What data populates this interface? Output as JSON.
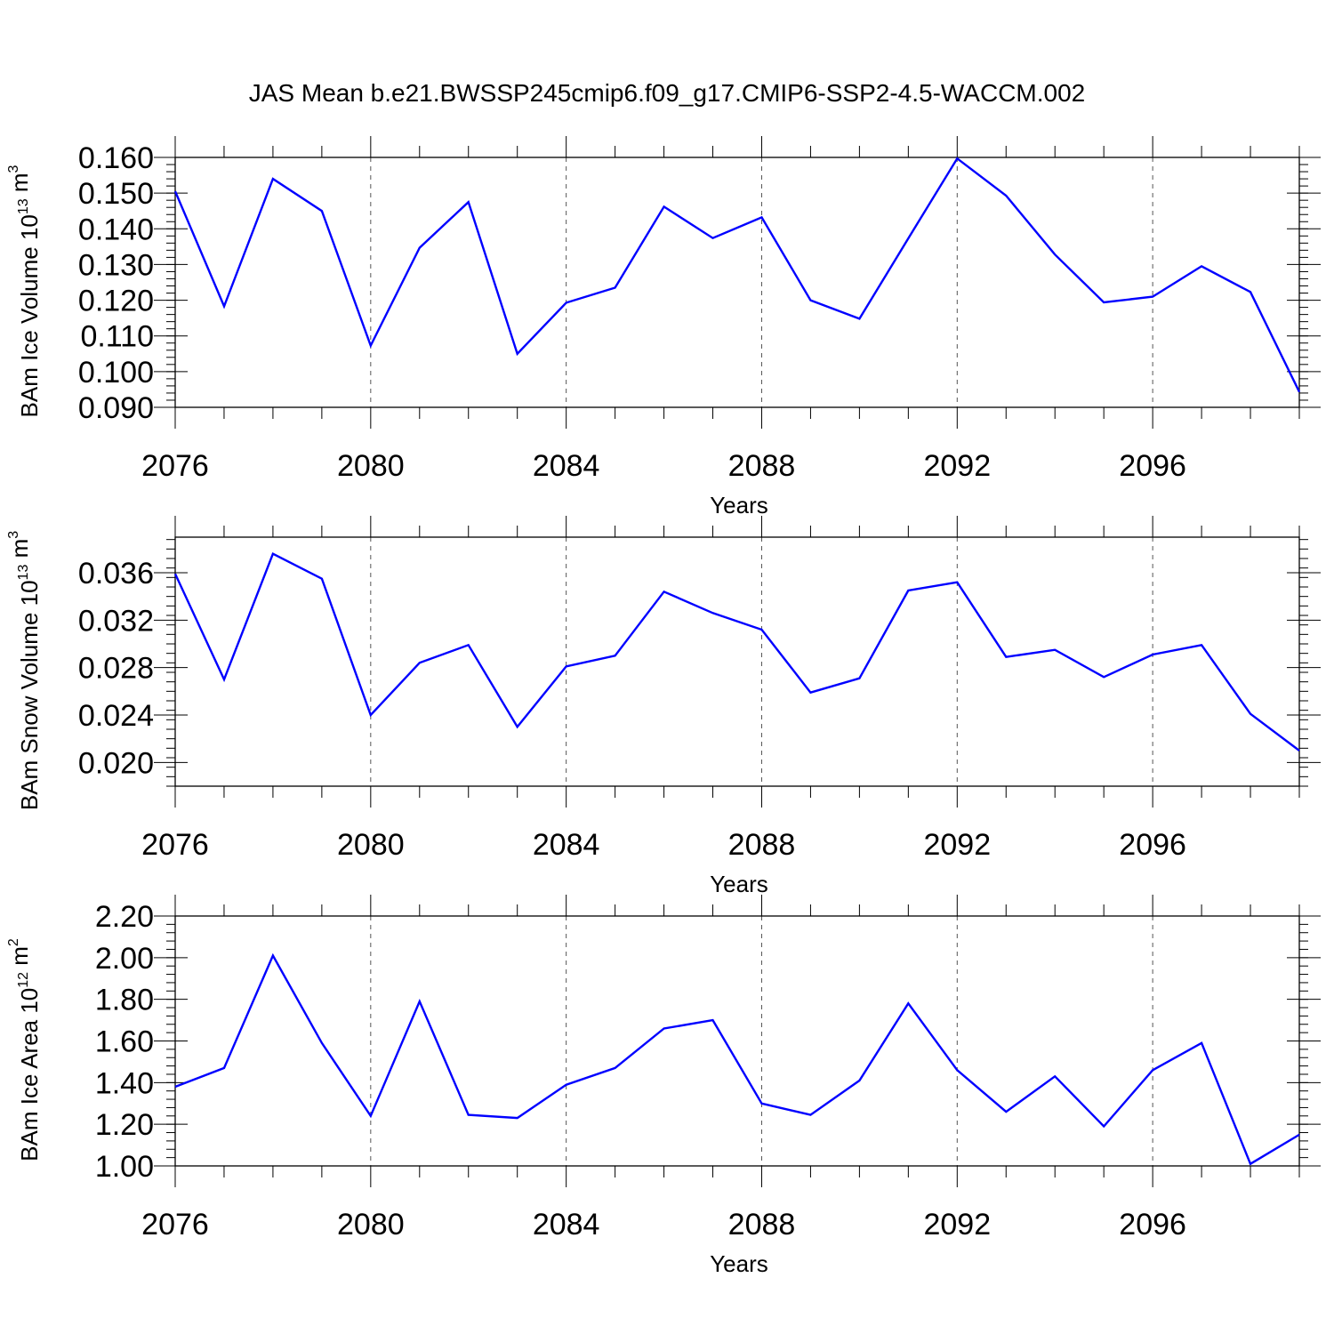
{
  "title": "JAS Mean b.e21.BWSSP245cmip6.f09_g17.CMIP6-SSP2-4.5-WACCM.002",
  "colors": {
    "line": "#0000ff",
    "axis": "#000000",
    "grid": "#555555"
  },
  "chart_data": [
    {
      "type": "line",
      "xlabel": "Years",
      "ylabel": {
        "text": "BAm Ice Volume 10",
        "exp": "13",
        "unit": " m",
        "unit_exp": "3"
      },
      "xlim": [
        2076,
        2099
      ],
      "ylim": [
        0.09,
        0.16
      ],
      "x_ticks": [
        "2076",
        "2080",
        "2084",
        "2088",
        "2092",
        "2096"
      ],
      "y_ticks": [
        "0.090",
        "0.100",
        "0.110",
        "0.120",
        "0.130",
        "0.140",
        "0.150",
        "0.160"
      ],
      "grid": "vertical dashed at major x ticks",
      "x": [
        2076,
        2077,
        2078,
        2079,
        2080,
        2081,
        2082,
        2083,
        2084,
        2085,
        2086,
        2087,
        2088,
        2089,
        2090,
        2091,
        2092,
        2093,
        2094,
        2095,
        2096,
        2097,
        2098,
        2099
      ],
      "values": [
        0.1505,
        0.1183,
        0.154,
        0.145,
        0.1073,
        0.1347,
        0.1475,
        0.105,
        0.1193,
        0.1235,
        0.1462,
        0.1374,
        0.1432,
        0.12,
        0.1148,
        0.1373,
        0.1597,
        0.1493,
        0.1328,
        0.1194,
        0.121,
        0.1295,
        0.1223,
        0.0943
      ]
    },
    {
      "type": "line",
      "xlabel": "Years",
      "ylabel": {
        "text": "BAm Snow Volume 10",
        "exp": "13",
        "unit": " m",
        "unit_exp": "3"
      },
      "xlim": [
        2076,
        2099
      ],
      "ylim": [
        0.018,
        0.039
      ],
      "x_ticks": [
        "2076",
        "2080",
        "2084",
        "2088",
        "2092",
        "2096"
      ],
      "y_ticks": [
        "0.020",
        "0.024",
        "0.028",
        "0.032",
        "0.036"
      ],
      "grid": "vertical dashed at major x ticks",
      "x": [
        2076,
        2077,
        2078,
        2079,
        2080,
        2081,
        2082,
        2083,
        2084,
        2085,
        2086,
        2087,
        2088,
        2089,
        2090,
        2091,
        2092,
        2093,
        2094,
        2095,
        2096,
        2097,
        2098,
        2099
      ],
      "values": [
        0.0359,
        0.027,
        0.0376,
        0.0355,
        0.024,
        0.0284,
        0.0299,
        0.023,
        0.0281,
        0.029,
        0.0344,
        0.0326,
        0.0312,
        0.0259,
        0.0271,
        0.0345,
        0.0352,
        0.0289,
        0.0295,
        0.0272,
        0.0291,
        0.0299,
        0.0241,
        0.021
      ]
    },
    {
      "type": "line",
      "xlabel": "Years",
      "ylabel": {
        "text": "BAm Ice Area 10",
        "exp": "12",
        "unit": " m",
        "unit_exp": "2"
      },
      "xlim": [
        2076,
        2099
      ],
      "ylim": [
        1.0,
        2.2
      ],
      "x_ticks": [
        "2076",
        "2080",
        "2084",
        "2088",
        "2092",
        "2096"
      ],
      "y_ticks": [
        "1.00",
        "1.20",
        "1.40",
        "1.60",
        "1.80",
        "2.00",
        "2.20"
      ],
      "grid": "vertical dashed at major x ticks",
      "x": [
        2076,
        2077,
        2078,
        2079,
        2080,
        2081,
        2082,
        2083,
        2084,
        2085,
        2086,
        2087,
        2088,
        2089,
        2090,
        2091,
        2092,
        2093,
        2094,
        2095,
        2096,
        2097,
        2098,
        2099
      ],
      "values": [
        1.38,
        1.47,
        2.01,
        1.59,
        1.24,
        1.79,
        1.245,
        1.23,
        1.39,
        1.47,
        1.66,
        1.7,
        1.3,
        1.245,
        1.41,
        1.78,
        1.46,
        1.26,
        1.43,
        1.19,
        1.46,
        1.59,
        1.01,
        1.15
      ]
    }
  ]
}
